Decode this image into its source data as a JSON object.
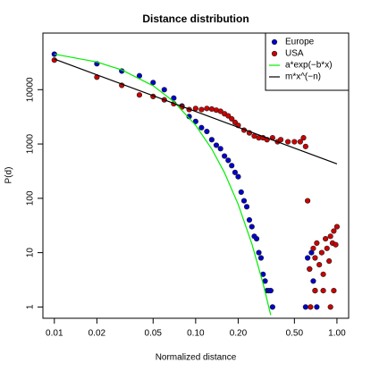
{
  "chart_data": {
    "type": "scatter",
    "title": "Distance distribution",
    "x_label": "Normalized distance",
    "y_label": "P(d)",
    "xscale": "log",
    "yscale": "log",
    "xlim": [
      0.0083,
      1.21
    ],
    "ylim": [
      0.62,
      110000
    ],
    "xticks": [
      0.01,
      0.02,
      0.05,
      {
        "value": 0.1,
        "label": "0.10"
      },
      {
        "value": 0.2,
        "label": "0.20"
      },
      {
        "value": 0.5,
        "label": "0.50"
      },
      {
        "value": 1,
        "label": "1.00"
      }
    ],
    "yticks": [
      1,
      10,
      100,
      1000,
      10000
    ],
    "legend": "top-right",
    "series": [
      {
        "name": "Europe",
        "color": "#0000cd",
        "marker": "point",
        "x": [
          0.01,
          0.02,
          0.03,
          0.04,
          0.05,
          0.06,
          0.07,
          0.08,
          0.09,
          0.1,
          0.11,
          0.12,
          0.13,
          0.14,
          0.15,
          0.16,
          0.17,
          0.18,
          0.19,
          0.2,
          0.21,
          0.22,
          0.23,
          0.24,
          0.25,
          0.26,
          0.27,
          0.28,
          0.29,
          0.3,
          0.31,
          0.32,
          0.33,
          0.34,
          0.35,
          0.6,
          0.62,
          0.64,
          0.66,
          0.68,
          0.7,
          0.72
        ],
        "values": [
          45000,
          30000,
          22000,
          18000,
          13500,
          10000,
          7000,
          5000,
          3200,
          2600,
          2000,
          1700,
          1200,
          950,
          820,
          600,
          500,
          400,
          300,
          250,
          130,
          90,
          70,
          40,
          30,
          20,
          18,
          10,
          8,
          4,
          3,
          2,
          2,
          2,
          1,
          1,
          8,
          5,
          10,
          3,
          2,
          1
        ]
      },
      {
        "name": "USA",
        "color": "#cc0000",
        "marker": "point",
        "x": [
          0.01,
          0.02,
          0.03,
          0.04,
          0.05,
          0.06,
          0.07,
          0.08,
          0.09,
          0.1,
          0.11,
          0.12,
          0.13,
          0.14,
          0.15,
          0.16,
          0.17,
          0.18,
          0.19,
          0.2,
          0.22,
          0.24,
          0.26,
          0.28,
          0.3,
          0.32,
          0.35,
          0.38,
          0.4,
          0.45,
          0.5,
          0.55,
          0.58,
          0.6,
          0.62,
          0.65,
          0.64,
          0.68,
          0.7,
          0.72,
          0.75,
          0.78,
          0.8,
          0.83,
          0.85,
          0.88,
          0.9,
          0.93,
          0.95,
          0.98,
          1.0,
          0.7,
          0.8,
          0.9,
          0.95
        ],
        "values": [
          35000,
          17000,
          12000,
          8000,
          7500,
          6500,
          5500,
          4800,
          4300,
          4500,
          4300,
          4500,
          4400,
          4200,
          4000,
          3600,
          3300,
          2900,
          2500,
          2200,
          1800,
          1600,
          1400,
          1300,
          1300,
          1200,
          1300,
          1100,
          1200,
          1100,
          1100,
          1100,
          1300,
          900,
          90,
          1,
          5,
          12,
          8,
          15,
          6,
          10,
          4,
          18,
          12,
          7,
          20,
          15,
          25,
          14,
          30,
          2,
          2,
          1,
          2
        ]
      },
      {
        "name": "a*exp(−b*x)",
        "color": "#00ee00",
        "marker": "line",
        "x": [
          0.01,
          0.02,
          0.03,
          0.05,
          0.07,
          0.1,
          0.13,
          0.16,
          0.2,
          0.25,
          0.3,
          0.34
        ],
        "values": [
          45000,
          32300,
          23100,
          11800,
          6040,
          2210,
          810,
          296,
          77.5,
          14.5,
          2.7,
          0.71
        ]
      },
      {
        "name": "m*x^(−n)",
        "color": "#000000",
        "marker": "line",
        "x": [
          0.01,
          0.1,
          1.0
        ],
        "values": [
          36600,
          3970,
          430
        ]
      }
    ]
  }
}
